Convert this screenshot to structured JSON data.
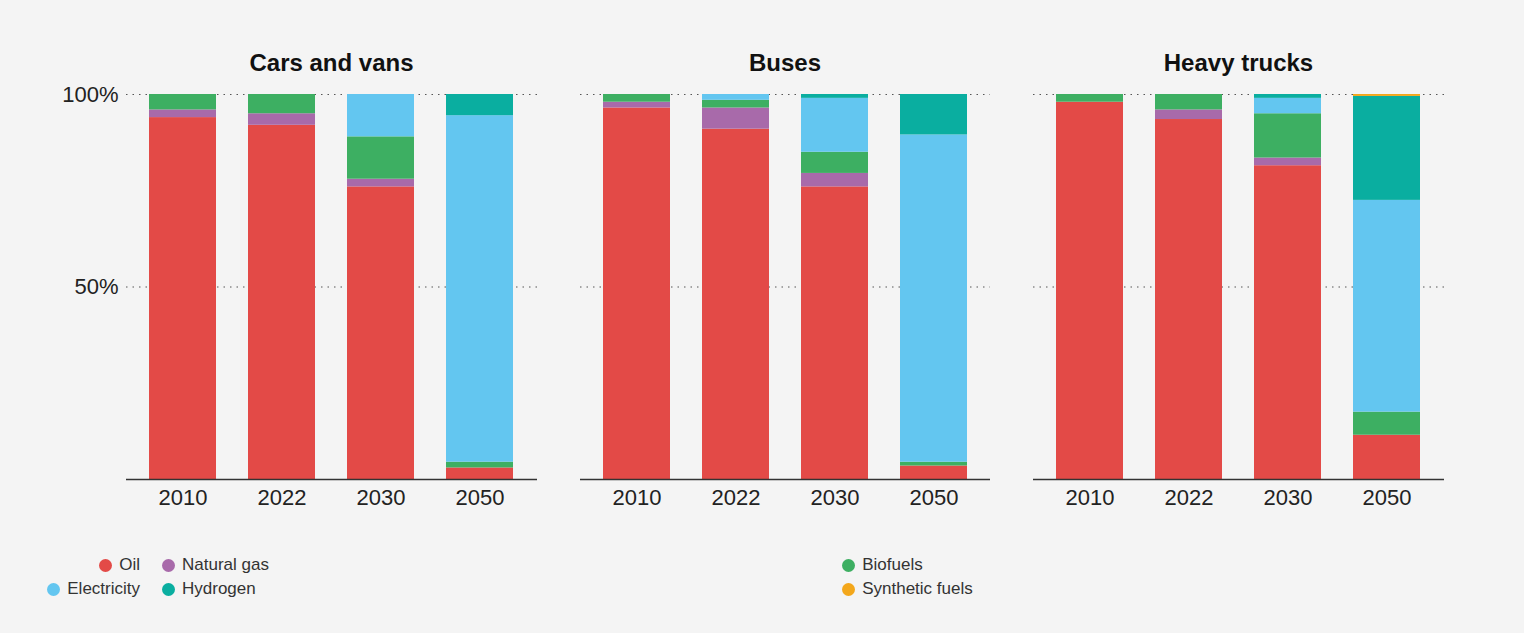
{
  "chart_data": [
    {
      "type": "bar",
      "title": "Cars and vans",
      "stacked": true,
      "grid": true,
      "categories": [
        "2010",
        "2022",
        "2030",
        "2050"
      ],
      "ylim": [
        0,
        100
      ],
      "yticks": [
        {
          "value": 50,
          "label": "50%"
        },
        {
          "value": 100,
          "label": "100%"
        }
      ],
      "series": [
        {
          "name": "Oil",
          "color": "#e34a47",
          "values": [
            94,
            92,
            76,
            3
          ]
        },
        {
          "name": "Natural gas",
          "color": "#a86aaa",
          "values": [
            2,
            3,
            2,
            0
          ]
        },
        {
          "name": "Biofuels",
          "color": "#3daf62",
          "values": [
            4,
            5,
            11,
            1.5
          ]
        },
        {
          "name": "Electricity",
          "color": "#63c6f0",
          "values": [
            0,
            0,
            11,
            90
          ]
        },
        {
          "name": "Hydrogen",
          "color": "#0aaea0",
          "values": [
            0,
            0,
            0,
            5.5
          ]
        },
        {
          "name": "Synthetic fuels",
          "color": "#f3a71b",
          "values": [
            0,
            0,
            0,
            0
          ]
        }
      ]
    },
    {
      "type": "bar",
      "title": "Buses",
      "stacked": true,
      "grid": true,
      "tick_labels": "x",
      "categories": [
        "2010",
        "2022",
        "2030",
        "2050"
      ],
      "ylim": [
        0,
        100
      ],
      "yticks": [
        {
          "value": 50,
          "label": "50%"
        },
        {
          "value": 100,
          "label": "100%"
        }
      ],
      "series": [
        {
          "name": "Oil",
          "color": "#e34a47",
          "values": [
            96.5,
            91,
            76,
            3.5
          ]
        },
        {
          "name": "Natural gas",
          "color": "#a86aaa",
          "values": [
            1.5,
            5.5,
            3.5,
            0
          ]
        },
        {
          "name": "Biofuels",
          "color": "#3daf62",
          "values": [
            2,
            2,
            5.5,
            1
          ]
        },
        {
          "name": "Electricity",
          "color": "#63c6f0",
          "values": [
            0,
            1.5,
            14,
            85
          ]
        },
        {
          "name": "Hydrogen",
          "color": "#0aaea0",
          "values": [
            0,
            0,
            1,
            10.5
          ]
        },
        {
          "name": "Synthetic fuels",
          "color": "#f3a71b",
          "values": [
            0,
            0,
            0,
            0
          ]
        }
      ]
    },
    {
      "type": "bar",
      "title": "Heavy trucks",
      "stacked": true,
      "grid": true,
      "tick_labels": "x",
      "categories": [
        "2010",
        "2022",
        "2030",
        "2050"
      ],
      "ylim": [
        0,
        100
      ],
      "yticks": [
        {
          "value": 50,
          "label": "50%"
        },
        {
          "value": 100,
          "label": "100%"
        }
      ],
      "series": [
        {
          "name": "Oil",
          "color": "#e34a47",
          "values": [
            98,
            93.5,
            81.5,
            11.5
          ]
        },
        {
          "name": "Natural gas",
          "color": "#a86aaa",
          "values": [
            0,
            2.5,
            2,
            0
          ]
        },
        {
          "name": "Biofuels",
          "color": "#3daf62",
          "values": [
            2,
            4,
            11.5,
            6
          ]
        },
        {
          "name": "Electricity",
          "color": "#63c6f0",
          "values": [
            0,
            0,
            4,
            55
          ]
        },
        {
          "name": "Hydrogen",
          "color": "#0aaea0",
          "values": [
            0,
            0,
            1,
            27
          ]
        },
        {
          "name": "Synthetic fuels",
          "color": "#f3a71b",
          "values": [
            0,
            0,
            0,
            0.5
          ]
        }
      ]
    }
  ]
}
